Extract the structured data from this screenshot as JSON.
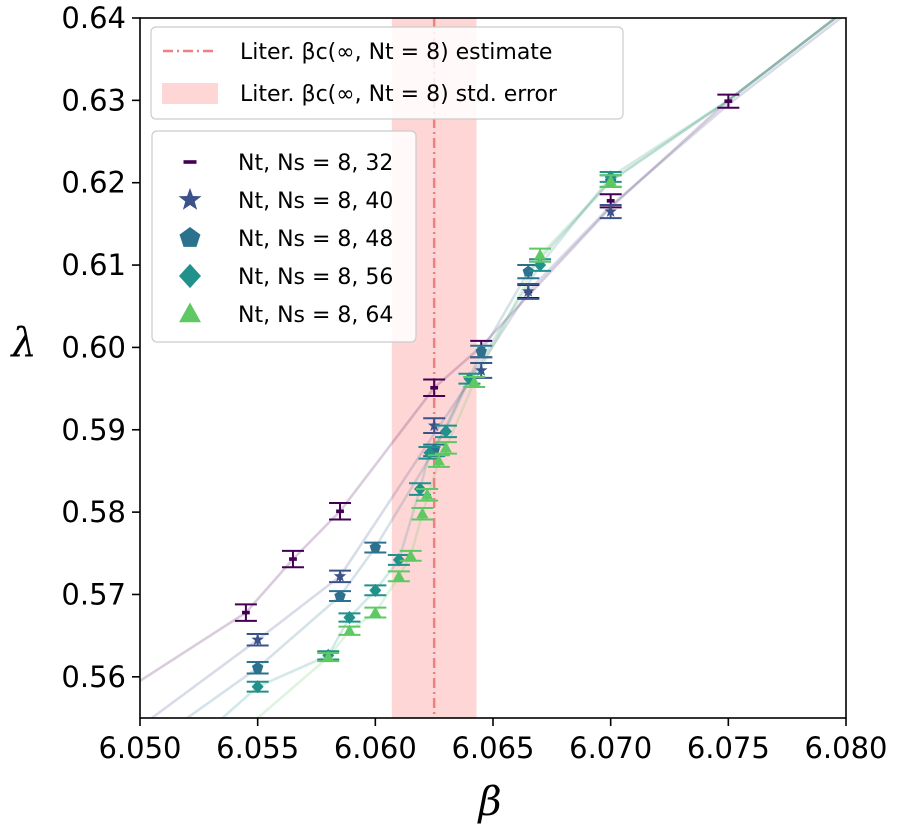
{
  "chart_data": {
    "type": "line",
    "xlabel": "β",
    "ylabel": "λ",
    "xlim": [
      6.05,
      6.08
    ],
    "ylim": [
      0.555,
      0.64
    ],
    "xticks": [
      6.05,
      6.055,
      6.06,
      6.065,
      6.07,
      6.075,
      6.08
    ],
    "xtick_labels": [
      "6.050",
      "6.055",
      "6.060",
      "6.065",
      "6.070",
      "6.075",
      "6.080"
    ],
    "yticks": [
      0.56,
      0.57,
      0.58,
      0.59,
      0.6,
      0.61,
      0.62,
      0.63,
      0.64
    ],
    "ytick_labels": [
      "0.56",
      "0.57",
      "0.58",
      "0.59",
      "0.60",
      "0.61",
      "0.62",
      "0.63",
      "0.64"
    ],
    "grid": false,
    "reference": {
      "estimate_x": 6.0625,
      "error_band": [
        6.0607,
        6.0643
      ],
      "estimate_color": "#f08080",
      "band_color": "#ffd6d6",
      "legend": [
        {
          "kind": "line",
          "text": "Liter. βc(∞, Nt = 8) estimate"
        },
        {
          "kind": "band",
          "text": "Liter. βc(∞, Nt = 8) std. error"
        }
      ]
    },
    "series": [
      {
        "name": "Nt, Ns = 8, 32",
        "marker": "dash",
        "color": "#440154",
        "x": [
          6.0545,
          6.0565,
          6.0585,
          6.0625,
          6.0645,
          6.0665,
          6.07,
          6.075
        ],
        "y": [
          0.5678,
          0.5743,
          0.5801,
          0.5951,
          0.5998,
          0.6068,
          0.6178,
          0.6299
        ],
        "err": [
          0.001,
          0.001,
          0.001,
          0.001,
          0.001,
          0.0008,
          0.0008,
          0.0008
        ],
        "fit_x": [
          6.05,
          6.0545,
          6.0565,
          6.0585,
          6.0625,
          6.0645,
          6.0665,
          6.07,
          6.075,
          6.08
        ],
        "fit_y": [
          0.5595,
          0.5678,
          0.5743,
          0.5801,
          0.5951,
          0.6001,
          0.6063,
          0.617,
          0.63,
          0.641
        ]
      },
      {
        "name": "Nt, Ns = 8, 40",
        "marker": "star",
        "color": "#3b528b",
        "x": [
          6.055,
          6.0585,
          6.0625,
          6.0645,
          6.0665,
          6.07
        ],
        "y": [
          0.5645,
          0.5722,
          0.5905,
          0.5972,
          0.6068,
          0.6165
        ],
        "err": [
          0.0007,
          0.0007,
          0.0009,
          0.0009,
          0.0009,
          0.0008
        ],
        "fit_x": [
          6.0505,
          6.055,
          6.0585,
          6.0625,
          6.0645,
          6.0665,
          6.07,
          6.075,
          6.08
        ],
        "fit_y": [
          0.555,
          0.5645,
          0.5722,
          0.5895,
          0.598,
          0.6068,
          0.6172,
          0.6295,
          0.6405
        ]
      },
      {
        "name": "Nt, Ns = 8, 48",
        "marker": "pentagon",
        "color": "#2c728e",
        "x": [
          6.055,
          6.0585,
          6.06,
          6.0625,
          6.0645,
          6.0665,
          6.07
        ],
        "y": [
          0.5611,
          0.5698,
          0.5757,
          0.5875,
          0.5995,
          0.6092,
          0.6202
        ],
        "err": [
          0.0007,
          0.0006,
          0.0006,
          0.0007,
          0.0007,
          0.0008,
          0.0007
        ],
        "fit_x": [
          6.052,
          6.055,
          6.0585,
          6.06,
          6.0625,
          6.0645,
          6.0665,
          6.07,
          6.075,
          6.08
        ],
        "fit_y": [
          0.555,
          0.5611,
          0.5698,
          0.5757,
          0.5875,
          0.5993,
          0.6092,
          0.6202,
          0.63,
          0.641
        ]
      },
      {
        "name": "Nt, Ns = 8, 56",
        "marker": "diamond",
        "color": "#21918c",
        "x": [
          6.055,
          6.058,
          6.0589,
          6.06,
          6.061,
          6.0619,
          6.0623,
          6.063,
          6.064,
          6.067,
          6.07
        ],
        "y": [
          0.5588,
          0.5626,
          0.5672,
          0.5705,
          0.5742,
          0.5828,
          0.5872,
          0.5898,
          0.5962,
          0.61,
          0.6207
        ],
        "err": [
          0.0006,
          0.0005,
          0.0005,
          0.0006,
          0.0006,
          0.0007,
          0.0007,
          0.0007,
          0.0006,
          0.0007,
          0.0006
        ],
        "fit_x": [
          6.0535,
          6.055,
          6.058,
          6.0589,
          6.06,
          6.061,
          6.0619,
          6.0623,
          6.063,
          6.064,
          6.067,
          6.07,
          6.075,
          6.08
        ],
        "fit_y": [
          0.555,
          0.5588,
          0.5626,
          0.5672,
          0.5705,
          0.5742,
          0.5828,
          0.5872,
          0.59,
          0.5962,
          0.61,
          0.6207,
          0.63,
          0.641
        ]
      },
      {
        "name": "Nt, Ns = 8, 64",
        "marker": "triangle",
        "color": "#5ec962",
        "x": [
          6.058,
          6.0589,
          6.06,
          6.061,
          6.0615,
          6.062,
          6.0622,
          6.0627,
          6.063,
          6.0642,
          6.067,
          6.07
        ],
        "y": [
          0.5624,
          0.5656,
          0.5678,
          0.5722,
          0.5747,
          0.5798,
          0.5821,
          0.5862,
          0.5878,
          0.5958,
          0.6112,
          0.6202
        ],
        "err": [
          0.0005,
          0.0005,
          0.0006,
          0.0006,
          0.0006,
          0.0007,
          0.0007,
          0.0007,
          0.0007,
          0.0006,
          0.0008,
          0.0007
        ],
        "fit_x": [
          6.055,
          6.058,
          6.0589,
          6.06,
          6.061,
          6.0615,
          6.062,
          6.0627,
          6.063,
          6.0642,
          6.067,
          6.07,
          6.075,
          6.08
        ],
        "fit_y": [
          0.555,
          0.5624,
          0.5656,
          0.5678,
          0.5722,
          0.5747,
          0.5798,
          0.5862,
          0.5878,
          0.5958,
          0.6112,
          0.6202,
          0.63,
          0.641
        ]
      }
    ]
  }
}
